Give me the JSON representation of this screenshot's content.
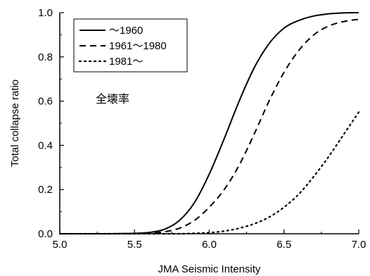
{
  "chart_data": {
    "type": "line",
    "title": "",
    "xlabel": "JMA Seismic Intensity",
    "ylabel": "Total collapse ratio",
    "xlim": [
      5.0,
      7.0
    ],
    "ylim": [
      0.0,
      1.0
    ],
    "x_ticks": [
      "5.0",
      "5.5",
      "6.0",
      "6.5",
      "7.0"
    ],
    "y_ticks": [
      "0.0",
      "0.2",
      "0.4",
      "0.6",
      "0.8",
      "1.0"
    ],
    "grid": false,
    "legend_position": "top-left",
    "annotation": "全壊率",
    "x": [
      5.0,
      5.1,
      5.2,
      5.3,
      5.4,
      5.5,
      5.6,
      5.7,
      5.8,
      5.9,
      6.0,
      6.1,
      6.2,
      6.3,
      6.4,
      6.5,
      6.6,
      6.7,
      6.8,
      6.9,
      7.0
    ],
    "series": [
      {
        "name": "～1960",
        "line_style": "solid",
        "values": [
          0.0,
          0.0,
          0.0,
          0.0,
          0.001,
          0.002,
          0.006,
          0.02,
          0.06,
          0.14,
          0.27,
          0.43,
          0.6,
          0.75,
          0.86,
          0.93,
          0.965,
          0.985,
          0.995,
          0.999,
          1.0
        ]
      },
      {
        "name": "1961～1980",
        "line_style": "dashed",
        "values": [
          0.0,
          0.0,
          0.0,
          0.0,
          0.0,
          0.001,
          0.003,
          0.009,
          0.025,
          0.06,
          0.12,
          0.2,
          0.31,
          0.45,
          0.6,
          0.73,
          0.83,
          0.9,
          0.94,
          0.96,
          0.97
        ]
      },
      {
        "name": "1981～",
        "line_style": "dotted",
        "values": [
          0.0,
          0.0,
          0.0,
          0.0,
          0.0,
          0.0,
          0.0,
          0.0,
          0.0,
          0.002,
          0.005,
          0.012,
          0.025,
          0.045,
          0.075,
          0.12,
          0.18,
          0.26,
          0.35,
          0.45,
          0.55
        ]
      }
    ]
  }
}
